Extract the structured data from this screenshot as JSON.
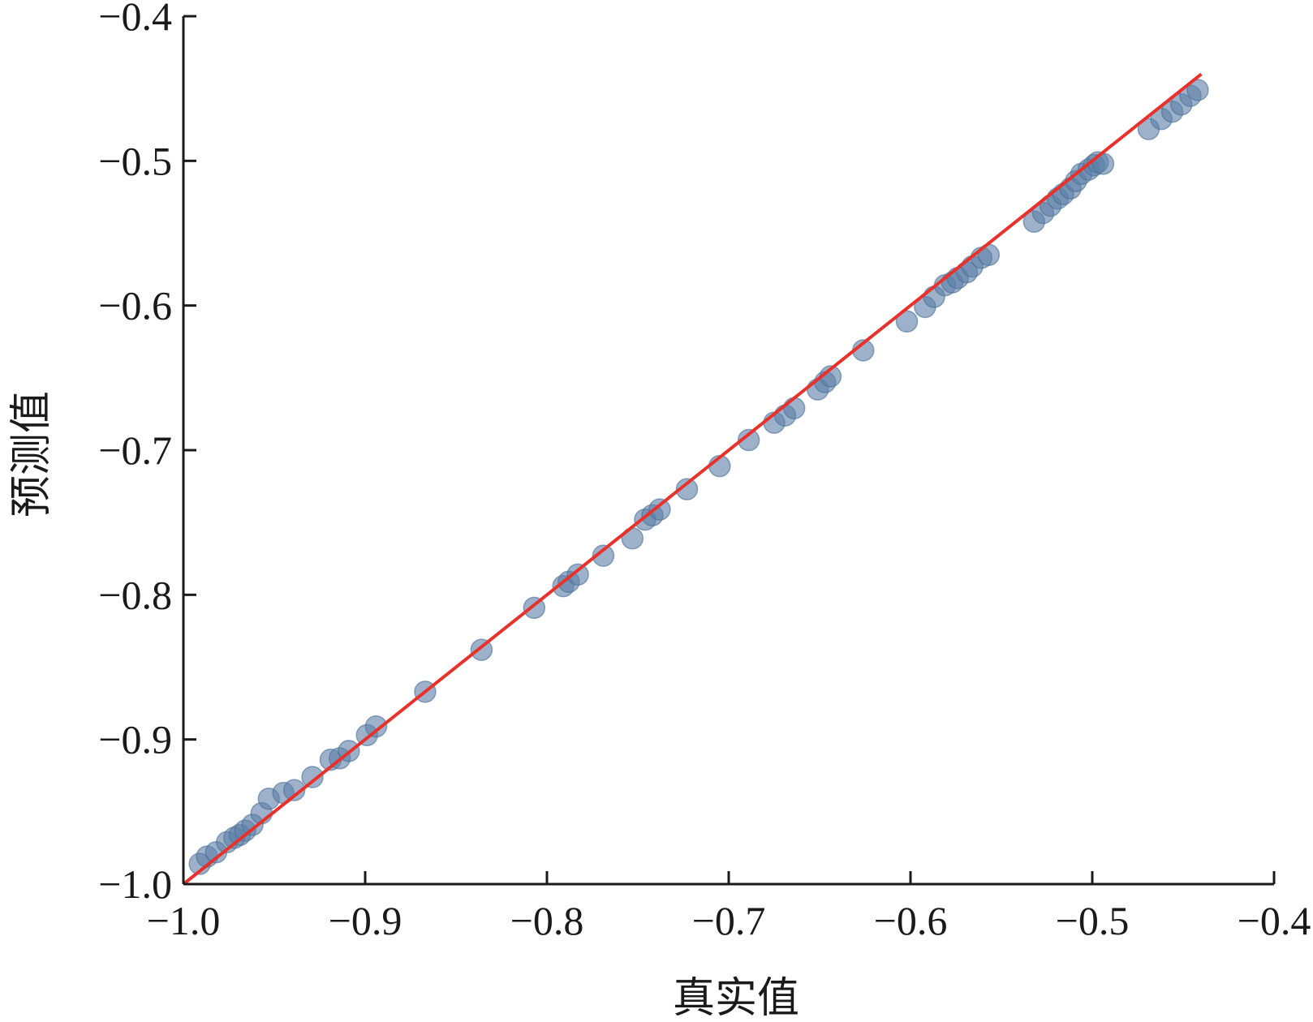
{
  "chart_data": {
    "type": "scatter",
    "title": "",
    "xlabel": "真实值",
    "ylabel": "预测值",
    "xlim": [
      -1.0,
      -0.4
    ],
    "ylim": [
      -1.0,
      -0.4
    ],
    "xticks": [
      "−1.0",
      "−0.9",
      "−0.8",
      "−0.7",
      "−0.6",
      "−0.5",
      "−0.4"
    ],
    "yticks": [
      "−1.0",
      "−0.9",
      "−0.8",
      "−0.7",
      "−0.6",
      "−0.5",
      "−0.4"
    ],
    "grid": false,
    "colors": {
      "points": "#5b7fa6",
      "fit_line": "#e8312a"
    },
    "fit_line": {
      "x": [
        -1.0,
        -0.44
      ],
      "y": [
        -1.0,
        -0.44
      ]
    },
    "points": {
      "x": [
        -0.991,
        -0.987,
        -0.982,
        -0.976,
        -0.972,
        -0.969,
        -0.966,
        -0.962,
        -0.957,
        -0.953,
        -0.945,
        -0.939,
        -0.929,
        -0.919,
        -0.914,
        -0.909,
        -0.899,
        -0.894,
        -0.867,
        -0.836,
        -0.807,
        -0.791,
        -0.788,
        -0.783,
        -0.769,
        -0.753,
        -0.746,
        -0.742,
        -0.738,
        -0.723,
        -0.705,
        -0.689,
        -0.675,
        -0.669,
        -0.664,
        -0.651,
        -0.647,
        -0.644,
        -0.626,
        -0.602,
        -0.592,
        -0.587,
        -0.581,
        -0.577,
        -0.574,
        -0.569,
        -0.566,
        -0.561,
        -0.557,
        -0.532,
        -0.527,
        -0.523,
        -0.519,
        -0.516,
        -0.512,
        -0.509,
        -0.506,
        -0.502,
        -0.499,
        -0.497,
        -0.494,
        -0.469,
        -0.462,
        -0.456,
        -0.451,
        -0.446,
        -0.442
      ],
      "y": [
        -0.986,
        -0.981,
        -0.978,
        -0.971,
        -0.968,
        -0.966,
        -0.963,
        -0.959,
        -0.951,
        -0.941,
        -0.937,
        -0.935,
        -0.926,
        -0.914,
        -0.913,
        -0.908,
        -0.897,
        -0.891,
        -0.867,
        -0.838,
        -0.809,
        -0.794,
        -0.791,
        -0.786,
        -0.773,
        -0.761,
        -0.748,
        -0.745,
        -0.741,
        -0.727,
        -0.711,
        -0.693,
        -0.681,
        -0.676,
        -0.671,
        -0.658,
        -0.653,
        -0.649,
        -0.631,
        -0.611,
        -0.601,
        -0.594,
        -0.586,
        -0.584,
        -0.581,
        -0.577,
        -0.573,
        -0.567,
        -0.565,
        -0.542,
        -0.536,
        -0.531,
        -0.526,
        -0.523,
        -0.519,
        -0.514,
        -0.509,
        -0.506,
        -0.503,
        -0.501,
        -0.502,
        -0.478,
        -0.471,
        -0.466,
        -0.461,
        -0.455,
        -0.451
      ]
    }
  }
}
